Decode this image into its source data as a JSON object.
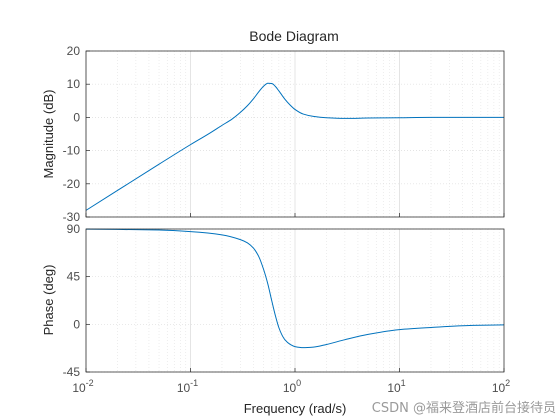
{
  "chart_data": {
    "type": "line",
    "title": "Bode Diagram",
    "xlabel": "Frequency  (rad/s)",
    "xscale": "log",
    "xlim": [
      0.01,
      100
    ],
    "x_tick_labels": [
      {
        "base": "10",
        "exp": "-2"
      },
      {
        "base": "10",
        "exp": "-1"
      },
      {
        "base": "10",
        "exp": "0"
      },
      {
        "base": "10",
        "exp": "1"
      },
      {
        "base": "10",
        "exp": "2"
      }
    ],
    "grid": true,
    "panels": [
      {
        "name": "magnitude",
        "ylabel": "Magnitude (dB)",
        "ylim": [
          -30,
          20
        ],
        "yticks": [
          "-30",
          "-20",
          "-10",
          "0",
          "10",
          "20"
        ],
        "color": "#0072bd",
        "x": [
          0.01,
          0.02,
          0.05,
          0.1,
          0.15,
          0.2,
          0.25,
          0.3,
          0.35,
          0.4,
          0.45,
          0.5,
          0.55,
          0.6,
          0.65,
          0.7,
          0.75,
          0.8,
          0.9,
          1.0,
          1.2,
          1.5,
          2,
          3,
          5,
          10,
          20,
          50,
          100
        ],
        "y": [
          -28.0,
          -22.0,
          -14.1,
          -8.2,
          -4.9,
          -2.4,
          -0.5,
          1.5,
          3.5,
          5.6,
          7.7,
          9.4,
          10.3,
          10.2,
          9.3,
          8.0,
          6.7,
          5.5,
          3.7,
          2.4,
          1.0,
          0.3,
          -0.1,
          -0.3,
          -0.2,
          -0.1,
          0.0,
          0.0,
          0.0
        ]
      },
      {
        "name": "phase",
        "ylabel": "Phase (deg)",
        "ylim": [
          -45,
          90
        ],
        "yticks": [
          "-45",
          "0",
          "45",
          "90"
        ],
        "color": "#0072bd",
        "x": [
          0.01,
          0.02,
          0.05,
          0.1,
          0.2,
          0.3,
          0.35,
          0.4,
          0.45,
          0.5,
          0.55,
          0.6,
          0.65,
          0.7,
          0.75,
          0.8,
          0.9,
          1.0,
          1.2,
          1.5,
          2,
          3,
          5,
          10,
          20,
          50,
          100
        ],
        "y": [
          89.9,
          89.6,
          89.0,
          87.5,
          84.5,
          80.0,
          77.0,
          72.0,
          64.0,
          52.0,
          38.0,
          22.0,
          8.0,
          -3.0,
          -10.0,
          -14.5,
          -19.0,
          -21.0,
          -22.0,
          -21.5,
          -19.0,
          -14.5,
          -9.5,
          -5.0,
          -3.0,
          -1.0,
          -0.5
        ]
      }
    ]
  },
  "watermark": "CSDN @福来登酒店前台接待员"
}
